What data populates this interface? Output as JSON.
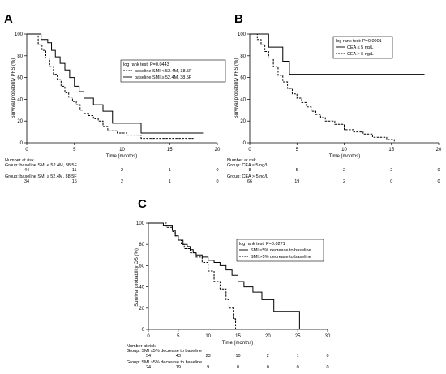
{
  "chart_data": [
    {
      "type": "line",
      "panel_label": "A",
      "ylabel": "Survival probability PFS (%)",
      "xlabel": "Time (months)",
      "xlim": [
        0,
        20
      ],
      "ylim": [
        0,
        100
      ],
      "x_ticks": [
        0,
        5,
        10,
        15,
        20
      ],
      "y_ticks": [
        0,
        20,
        40,
        60,
        80,
        100
      ],
      "legend_title": "log rank test: P=0.0443",
      "legend_placement": "top-right",
      "series": [
        {
          "name": "baseline SMI < 52.4M, 38.5F",
          "style": "dashed",
          "x": [
            0,
            1.2,
            1.6,
            2.0,
            2.4,
            2.8,
            3.2,
            3.6,
            4.0,
            4.4,
            4.8,
            5.2,
            5.6,
            6.0,
            6.5,
            7.0,
            7.5,
            8.0,
            8.5,
            9.5,
            10.5,
            12.0,
            17.5
          ],
          "y": [
            100,
            90,
            85,
            78,
            70,
            63,
            58,
            52,
            46,
            42,
            38,
            35,
            30,
            27,
            25,
            22,
            20,
            15,
            11,
            9,
            7,
            4,
            4
          ]
        },
        {
          "name": "baseline SMI ≥ 52.4M, 38.5F",
          "style": "solid",
          "x": [
            0,
            1.5,
            2.2,
            2.6,
            3.0,
            3.5,
            4.0,
            4.5,
            5.0,
            5.5,
            6.0,
            7.0,
            8.0,
            9.0,
            12.0,
            18.5
          ],
          "y": [
            100,
            95,
            92,
            85,
            79,
            73,
            67,
            60,
            52,
            47,
            41,
            35,
            29,
            18,
            9,
            9
          ]
        }
      ],
      "risk_table": {
        "header": "Number at risk",
        "x": [
          0,
          5,
          10,
          15,
          20
        ],
        "groups": [
          {
            "label": "Group: baseline SMI < 52.4M, 38.5F",
            "counts": [
              "44",
              "11",
              "2",
              "1",
              "0"
            ]
          },
          {
            "label": "Group: baseline SMI ≥ 52.4M, 38.5F",
            "counts": [
              "34",
              "16",
              "2",
              "1",
              "0"
            ]
          }
        ]
      }
    },
    {
      "type": "line",
      "panel_label": "B",
      "ylabel": "Survival probability PFS (%)",
      "xlabel": "Time (months)",
      "xlim": [
        0,
        20
      ],
      "ylim": [
        0,
        100
      ],
      "x_ticks": [
        0,
        5,
        10,
        15,
        20
      ],
      "y_ticks": [
        0,
        20,
        40,
        60,
        80,
        100
      ],
      "legend_title": "log rank test: P=0.0001",
      "legend_placement": "top-right",
      "series": [
        {
          "name": "CEA ≤ 5 ng/L",
          "style": "solid",
          "x": [
            0,
            2.0,
            3.5,
            4.2,
            18.5
          ],
          "y": [
            100,
            88,
            75,
            63,
            63
          ]
        },
        {
          "name": "CEA > 5 ng/L",
          "style": "dashed",
          "x": [
            0,
            0.8,
            1.2,
            1.6,
            2.0,
            2.5,
            3.0,
            3.5,
            4.0,
            4.5,
            5.0,
            5.5,
            6.0,
            6.5,
            7.0,
            7.5,
            8.0,
            9.0,
            10.0,
            11.0,
            12.0,
            13.0,
            14.5,
            15.3
          ],
          "y": [
            100,
            95,
            90,
            84,
            78,
            70,
            62,
            56,
            50,
            45,
            41,
            37,
            33,
            29,
            26,
            23,
            20,
            17,
            12,
            10,
            8,
            5,
            3,
            0
          ]
        }
      ],
      "risk_table": {
        "header": "Number at risk",
        "x": [
          0,
          5,
          10,
          15,
          20
        ],
        "groups": [
          {
            "label": "Group: CEA ≤ 5 ng/L",
            "counts": [
              "8",
              "5",
              "2",
              "2",
              "0"
            ]
          },
          {
            "label": "Group: CEA > 5 ng/L",
            "counts": [
              "66",
              "19",
              "2",
              "0",
              "0"
            ]
          }
        ]
      }
    },
    {
      "type": "line",
      "panel_label": "C",
      "ylabel": "Survival probability OS (%)",
      "xlabel": "Time (months)",
      "xlim": [
        0,
        30
      ],
      "ylim": [
        0,
        100
      ],
      "x_ticks": [
        0,
        5,
        10,
        15,
        20,
        25,
        30
      ],
      "y_ticks": [
        0,
        20,
        40,
        60,
        80,
        100
      ],
      "legend_title": "log rank test: P=0.0271",
      "legend_placement": "top-right",
      "series": [
        {
          "name": "SMI ≤5% decrease to baseline",
          "style": "solid",
          "x": [
            0,
            2.5,
            4.0,
            4.5,
            5.0,
            5.8,
            6.5,
            7.0,
            7.5,
            8.0,
            9.0,
            10.0,
            11.0,
            12.0,
            13.0,
            14.0,
            15.0,
            16.0,
            17.5,
            19.0,
            21.0,
            25.3
          ],
          "y": [
            100,
            98,
            93,
            88,
            84,
            80,
            78,
            75,
            72,
            70,
            68,
            65,
            63,
            60,
            56,
            51,
            45,
            40,
            35,
            28,
            17,
            0
          ]
        },
        {
          "name": "SMI >5% decrease to baseline",
          "style": "dashed",
          "x": [
            0,
            3.0,
            4.0,
            4.5,
            5.0,
            5.5,
            6.0,
            7.0,
            8.0,
            9.0,
            10.0,
            11.0,
            12.0,
            13.0,
            13.5,
            14.2,
            14.6
          ],
          "y": [
            100,
            96,
            92,
            88,
            84,
            80,
            76,
            72,
            68,
            63,
            55,
            45,
            38,
            28,
            20,
            10,
            0
          ]
        }
      ],
      "risk_table": {
        "header": "Number at risk",
        "x": [
          0,
          5,
          10,
          15,
          20,
          25,
          30
        ],
        "groups": [
          {
            "label": "Group: SMI ≤5% decrease to baseline",
            "counts": [
              "54",
              "43",
              "23",
              "10",
              "2",
              "1",
              "0"
            ]
          },
          {
            "label": "Group: SMI >5% decrease to baseline",
            "counts": [
              "24",
              "19",
              "9",
              "0",
              "0",
              "0",
              "0"
            ]
          }
        ]
      }
    }
  ]
}
